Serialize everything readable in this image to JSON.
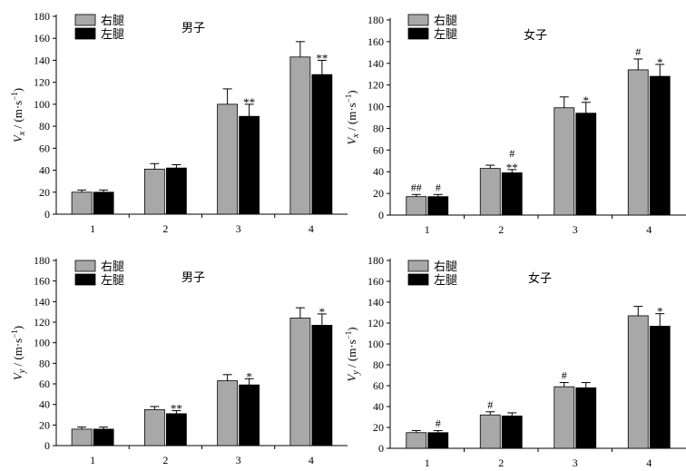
{
  "chart_data": [
    {
      "id": "male-vx",
      "type": "bar",
      "title": "男子",
      "ylabel": {
        "var": "V",
        "sub": "x",
        "unit": "/ (m·s",
        "sup": "−1",
        "close": ")"
      },
      "ylim": [
        0,
        180
      ],
      "yticks": [
        0,
        20,
        40,
        60,
        80,
        100,
        120,
        140,
        160,
        180
      ],
      "categories": [
        "1",
        "2",
        "3",
        "4"
      ],
      "series": [
        {
          "name": "右腿",
          "color": "#a8a8a8",
          "values": [
            20,
            41,
            100,
            143
          ],
          "errors": [
            2,
            5,
            14,
            14
          ],
          "annotations": [
            "",
            "",
            "",
            ""
          ]
        },
        {
          "name": "左腿",
          "color": "#000000",
          "values": [
            20,
            42,
            89,
            127
          ],
          "errors": [
            2,
            3,
            11,
            13
          ],
          "annotations": [
            "",
            "",
            "**",
            "**"
          ]
        }
      ]
    },
    {
      "id": "female-vx",
      "type": "bar",
      "title": "女子",
      "ylabel": {
        "var": "V",
        "sub": "x",
        "unit": "/ (m·s",
        "sup": "−1",
        "close": ")"
      },
      "ylim": [
        0,
        180
      ],
      "yticks": [
        0,
        20,
        40,
        60,
        80,
        100,
        120,
        140,
        160,
        180
      ],
      "categories": [
        "1",
        "2",
        "3",
        "4"
      ],
      "series": [
        {
          "name": "右腿",
          "color": "#a8a8a8",
          "values": [
            17,
            43,
            99,
            134
          ],
          "errors": [
            2,
            3,
            10,
            10
          ],
          "annotations": [
            "##",
            "",
            "",
            "#"
          ]
        },
        {
          "name": "左腿",
          "color": "#000000",
          "values": [
            17,
            39,
            94,
            128
          ],
          "errors": [
            2,
            3,
            10,
            11
          ],
          "annotations": [
            "#",
            "#\n**",
            "*",
            "*"
          ]
        }
      ]
    },
    {
      "id": "male-vy",
      "type": "bar",
      "title": "男子",
      "ylabel": {
        "var": "V",
        "sub": "y",
        "unit": "/ (m·s",
        "sup": "−1",
        "close": ")"
      },
      "ylim": [
        0,
        180
      ],
      "yticks": [
        0,
        20,
        40,
        60,
        80,
        100,
        120,
        140,
        160,
        180
      ],
      "categories": [
        "1",
        "2",
        "3",
        "4"
      ],
      "series": [
        {
          "name": "右腿",
          "color": "#a8a8a8",
          "values": [
            16,
            35,
            63,
            124
          ],
          "errors": [
            2,
            3,
            6,
            10
          ],
          "annotations": [
            "",
            "",
            "",
            ""
          ]
        },
        {
          "name": "左腿",
          "color": "#000000",
          "values": [
            16,
            31,
            59,
            117
          ],
          "errors": [
            2,
            3,
            6,
            11
          ],
          "annotations": [
            "",
            "**",
            "*",
            "*"
          ]
        }
      ]
    },
    {
      "id": "female-vy",
      "type": "bar",
      "title": "女子",
      "ylabel": {
        "var": "V",
        "sub": "y",
        "unit": "/ (m·s",
        "sup": "−1",
        "close": ")"
      },
      "ylim": [
        0,
        180
      ],
      "yticks": [
        0,
        20,
        40,
        60,
        80,
        100,
        120,
        140,
        160,
        180
      ],
      "categories": [
        "1",
        "2",
        "3",
        "4"
      ],
      "series": [
        {
          "name": "右腿",
          "color": "#a8a8a8",
          "values": [
            15,
            32,
            59,
            127
          ],
          "errors": [
            2,
            3,
            4,
            9
          ],
          "annotations": [
            "",
            "#",
            "#",
            ""
          ]
        },
        {
          "name": "左腿",
          "color": "#000000",
          "values": [
            15,
            31,
            58,
            117
          ],
          "errors": [
            2,
            3,
            5,
            12
          ],
          "annotations": [
            "#",
            "",
            "",
            "*"
          ]
        }
      ]
    }
  ]
}
